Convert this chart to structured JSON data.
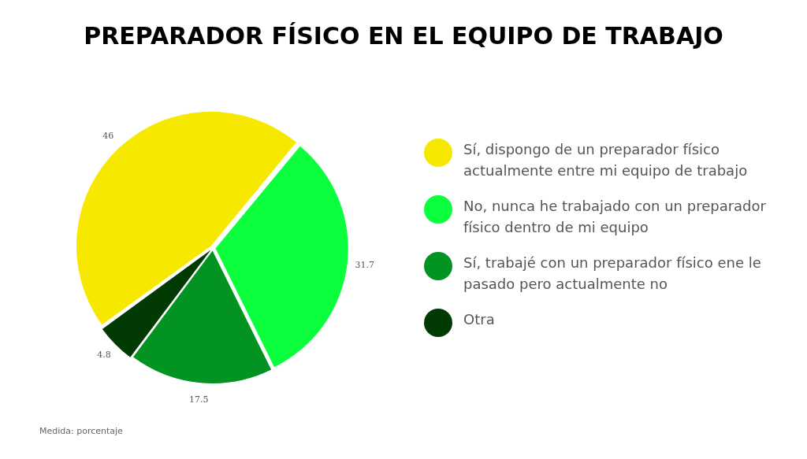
{
  "chart_data": {
    "type": "pie",
    "title": "PREPARADOR FÍSICO EN EL EQUIPO DE TRABAJO",
    "categories": [
      "Sí, dispongo de un preparador físico actualmente entre mi equipo de trabajo",
      "No, nunca he trabajado con un preparador físico dentro de mi equipo",
      "Sí, trabajé con un preparador físico ene le pasado pero actualmente no",
      "Otra"
    ],
    "values": [
      46,
      31.7,
      17.5,
      4.8
    ],
    "colors": [
      "#f7e800",
      "#0cff3c",
      "#039322",
      "#013a02"
    ],
    "data_labels": true,
    "legend": "right",
    "annotations": [
      "Medida: porcentaje"
    ]
  }
}
